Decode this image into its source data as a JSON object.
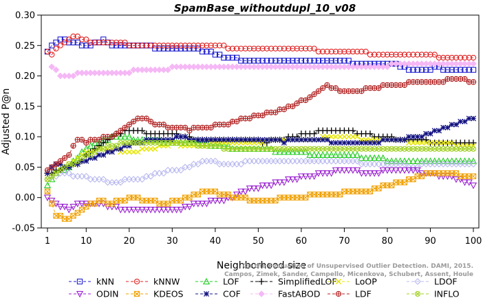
{
  "chart_data": {
    "type": "line",
    "title": "SpamBase_withoutdupl_10_v08",
    "xlabel": "Neighborhood size",
    "ylabel": "Adjusted P@n",
    "xlim": [
      1,
      100
    ],
    "ylim": [
      -0.05,
      0.3
    ],
    "xticks": [
      1,
      10,
      20,
      30,
      40,
      50,
      60,
      70,
      80,
      90,
      100
    ],
    "yticks": [
      -0.05,
      0.0,
      0.05,
      0.1,
      0.15,
      0.2,
      0.25,
      0.3
    ],
    "ytick_labels": [
      "-0.05",
      "0.00",
      "0.05",
      "0.10",
      "0.15",
      "0.20",
      "0.25",
      "0.30"
    ],
    "grid": false,
    "legend_position": "bottom",
    "watermark_lines": [
      "Campos, Zimek, Sander, Campello, Micenkova, Schubert, Assent, Houle",
      "On the Evaluation of Unsupervised Outlier Detection. DAMI, 2015."
    ],
    "series": [
      {
        "name": "kNN",
        "color": "#1f1fcf",
        "marker": "square",
        "dash": "4,3",
        "points": [
          [
            1,
            0.24
          ],
          [
            3,
            0.255
          ],
          [
            4,
            0.26
          ],
          [
            6,
            0.255
          ],
          [
            10,
            0.25
          ],
          [
            14,
            0.258
          ],
          [
            16,
            0.252
          ],
          [
            26,
            0.247
          ],
          [
            36,
            0.243
          ],
          [
            42,
            0.232
          ],
          [
            47,
            0.225
          ],
          [
            70,
            0.223
          ],
          [
            82,
            0.218
          ],
          [
            85,
            0.21
          ],
          [
            92,
            0.213
          ],
          [
            96,
            0.21
          ],
          [
            100,
            0.21
          ]
        ]
      },
      {
        "name": "kNNW",
        "color": "#e02020",
        "marker": "circle",
        "dash": "4,3",
        "points": [
          [
            1,
            0.24
          ],
          [
            2,
            0.235
          ],
          [
            4,
            0.25
          ],
          [
            7,
            0.265
          ],
          [
            9,
            0.262
          ],
          [
            12,
            0.253
          ],
          [
            14,
            0.255
          ],
          [
            25,
            0.25
          ],
          [
            40,
            0.248
          ],
          [
            55,
            0.245
          ],
          [
            65,
            0.242
          ],
          [
            75,
            0.238
          ],
          [
            80,
            0.235
          ],
          [
            90,
            0.233
          ],
          [
            100,
            0.23
          ]
        ]
      },
      {
        "name": "LOF",
        "color": "#22cc22",
        "marker": "triangle",
        "dash": "4,3",
        "points": [
          [
            1,
            0.02
          ],
          [
            3,
            0.04
          ],
          [
            6,
            0.05
          ],
          [
            10,
            0.08
          ],
          [
            14,
            0.095
          ],
          [
            17,
            0.1
          ],
          [
            24,
            0.095
          ],
          [
            30,
            0.09
          ],
          [
            36,
            0.092
          ],
          [
            40,
            0.085
          ],
          [
            46,
            0.08
          ],
          [
            52,
            0.078
          ],
          [
            58,
            0.075
          ],
          [
            64,
            0.07
          ],
          [
            70,
            0.07
          ],
          [
            80,
            0.062
          ],
          [
            90,
            0.06
          ],
          [
            100,
            0.06
          ]
        ]
      },
      {
        "name": "SimplifiedLOF",
        "color": "#000000",
        "marker": "plus",
        "dash": "4,3",
        "points": [
          [
            1,
            0.04
          ],
          [
            4,
            0.045
          ],
          [
            8,
            0.055
          ],
          [
            12,
            0.08
          ],
          [
            16,
            0.1
          ],
          [
            20,
            0.11
          ],
          [
            26,
            0.105
          ],
          [
            30,
            0.105
          ],
          [
            36,
            0.095
          ],
          [
            44,
            0.095
          ],
          [
            52,
            0.092
          ],
          [
            58,
            0.1
          ],
          [
            62,
            0.105
          ],
          [
            66,
            0.11
          ],
          [
            72,
            0.108
          ],
          [
            78,
            0.1
          ],
          [
            84,
            0.095
          ],
          [
            90,
            0.092
          ],
          [
            100,
            0.092
          ]
        ]
      },
      {
        "name": "LoOP",
        "color": "#e6e600",
        "marker": "x",
        "dash": "4,3",
        "points": [
          [
            1,
            0.03
          ],
          [
            5,
            0.05
          ],
          [
            10,
            0.075
          ],
          [
            15,
            0.08
          ],
          [
            20,
            0.075
          ],
          [
            25,
            0.08
          ],
          [
            30,
            0.088
          ],
          [
            36,
            0.085
          ],
          [
            42,
            0.09
          ],
          [
            50,
            0.092
          ],
          [
            60,
            0.095
          ],
          [
            66,
            0.098
          ],
          [
            72,
            0.098
          ],
          [
            80,
            0.095
          ],
          [
            88,
            0.09
          ],
          [
            94,
            0.088
          ],
          [
            100,
            0.085
          ]
        ]
      },
      {
        "name": "LDOF",
        "color": "#b8b8f0",
        "marker": "diamond",
        "dash": "4,3",
        "points": [
          [
            1,
            0.03
          ],
          [
            4,
            0.04
          ],
          [
            8,
            0.035
          ],
          [
            12,
            0.03
          ],
          [
            16,
            0.025
          ],
          [
            22,
            0.03
          ],
          [
            28,
            0.042
          ],
          [
            34,
            0.05
          ],
          [
            38,
            0.06
          ],
          [
            42,
            0.055
          ],
          [
            48,
            0.058
          ],
          [
            54,
            0.06
          ],
          [
            60,
            0.062
          ],
          [
            66,
            0.06
          ],
          [
            72,
            0.058
          ],
          [
            78,
            0.055
          ],
          [
            86,
            0.052
          ],
          [
            94,
            0.055
          ],
          [
            100,
            0.055
          ]
        ]
      },
      {
        "name": "ODIN",
        "color": "#9a20d0",
        "marker": "triangle-down",
        "dash": "4,3",
        "points": [
          [
            1,
            0.0
          ],
          [
            3,
            -0.01
          ],
          [
            6,
            -0.02
          ],
          [
            8,
            -0.012
          ],
          [
            12,
            -0.01
          ],
          [
            16,
            -0.015
          ],
          [
            20,
            -0.022
          ],
          [
            26,
            -0.02
          ],
          [
            32,
            -0.018
          ],
          [
            36,
            -0.01
          ],
          [
            42,
            -0.005
          ],
          [
            46,
            0.01
          ],
          [
            52,
            0.02
          ],
          [
            58,
            0.03
          ],
          [
            64,
            0.038
          ],
          [
            70,
            0.045
          ],
          [
            76,
            0.04
          ],
          [
            82,
            0.045
          ],
          [
            88,
            0.042
          ],
          [
            94,
            0.035
          ],
          [
            98,
            0.025
          ],
          [
            100,
            0.022
          ]
        ]
      },
      {
        "name": "KDEOS",
        "color": "#f0a000",
        "marker": "square-x",
        "dash": "4,3",
        "points": [
          [
            1,
            0.008
          ],
          [
            3,
            -0.03
          ],
          [
            5,
            -0.035
          ],
          [
            7,
            -0.032
          ],
          [
            9,
            -0.02
          ],
          [
            13,
            -0.005
          ],
          [
            16,
            -0.01
          ],
          [
            20,
            0.0
          ],
          [
            24,
            -0.005
          ],
          [
            28,
            -0.01
          ],
          [
            34,
            0.0
          ],
          [
            38,
            0.01
          ],
          [
            42,
            0.005
          ],
          [
            48,
            -0.003
          ],
          [
            54,
            -0.003
          ],
          [
            58,
            0.0
          ],
          [
            62,
            0.003
          ],
          [
            66,
            0.003
          ],
          [
            70,
            0.008
          ],
          [
            76,
            0.01
          ],
          [
            80,
            0.02
          ],
          [
            86,
            0.03
          ],
          [
            90,
            0.04
          ],
          [
            96,
            0.038
          ],
          [
            100,
            0.035
          ]
        ]
      },
      {
        "name": "COF",
        "color": "#101080",
        "marker": "star",
        "dash": "4,3",
        "points": [
          [
            1,
            0.04
          ],
          [
            3,
            0.055
          ],
          [
            6,
            0.05
          ],
          [
            10,
            0.06
          ],
          [
            14,
            0.07
          ],
          [
            18,
            0.08
          ],
          [
            22,
            0.09
          ],
          [
            26,
            0.095
          ],
          [
            32,
            0.098
          ],
          [
            40,
            0.095
          ],
          [
            50,
            0.095
          ],
          [
            56,
            0.092
          ],
          [
            62,
            0.095
          ],
          [
            70,
            0.09
          ],
          [
            76,
            0.088
          ],
          [
            80,
            0.095
          ],
          [
            86,
            0.098
          ],
          [
            90,
            0.105
          ],
          [
            94,
            0.115
          ],
          [
            98,
            0.125
          ],
          [
            100,
            0.13
          ]
        ]
      },
      {
        "name": "FastABOD",
        "color": "#f5b8f5",
        "marker": "diamond-filled",
        "dash": "4,3",
        "points": [
          [
            2,
            0.215
          ],
          [
            4,
            0.2
          ],
          [
            8,
            0.203
          ],
          [
            14,
            0.205
          ],
          [
            20,
            0.207
          ],
          [
            28,
            0.212
          ],
          [
            36,
            0.215
          ],
          [
            46,
            0.215
          ],
          [
            56,
            0.216
          ],
          [
            66,
            0.217
          ],
          [
            76,
            0.217
          ],
          [
            86,
            0.218
          ],
          [
            100,
            0.218
          ]
        ]
      },
      {
        "name": "LDF",
        "color": "#b02020",
        "marker": "circle-plus",
        "dash": "4,3",
        "points": [
          [
            1,
            0.045
          ],
          [
            4,
            0.06
          ],
          [
            6,
            0.07
          ],
          [
            8,
            0.095
          ],
          [
            10,
            0.09
          ],
          [
            12,
            0.095
          ],
          [
            16,
            0.1
          ],
          [
            20,
            0.12
          ],
          [
            23,
            0.132
          ],
          [
            26,
            0.12
          ],
          [
            30,
            0.115
          ],
          [
            34,
            0.112
          ],
          [
            38,
            0.115
          ],
          [
            42,
            0.12
          ],
          [
            46,
            0.128
          ],
          [
            50,
            0.135
          ],
          [
            54,
            0.14
          ],
          [
            58,
            0.15
          ],
          [
            62,
            0.165
          ],
          [
            66,
            0.183
          ],
          [
            70,
            0.175
          ],
          [
            76,
            0.178
          ],
          [
            80,
            0.185
          ],
          [
            86,
            0.188
          ],
          [
            92,
            0.19
          ],
          [
            96,
            0.195
          ],
          [
            100,
            0.19
          ]
        ]
      },
      {
        "name": "INFLO",
        "color": "#a0d020",
        "marker": "circle-x",
        "dash": "4,3",
        "points": [
          [
            1,
            0.03
          ],
          [
            4,
            0.045
          ],
          [
            8,
            0.06
          ],
          [
            12,
            0.075
          ],
          [
            16,
            0.085
          ],
          [
            20,
            0.09
          ],
          [
            26,
            0.092
          ],
          [
            32,
            0.09
          ],
          [
            38,
            0.085
          ],
          [
            44,
            0.08
          ],
          [
            50,
            0.078
          ],
          [
            56,
            0.078
          ],
          [
            62,
            0.078
          ],
          [
            68,
            0.08
          ],
          [
            74,
            0.08
          ],
          [
            80,
            0.08
          ],
          [
            86,
            0.08
          ],
          [
            92,
            0.08
          ],
          [
            100,
            0.08
          ]
        ]
      }
    ]
  }
}
